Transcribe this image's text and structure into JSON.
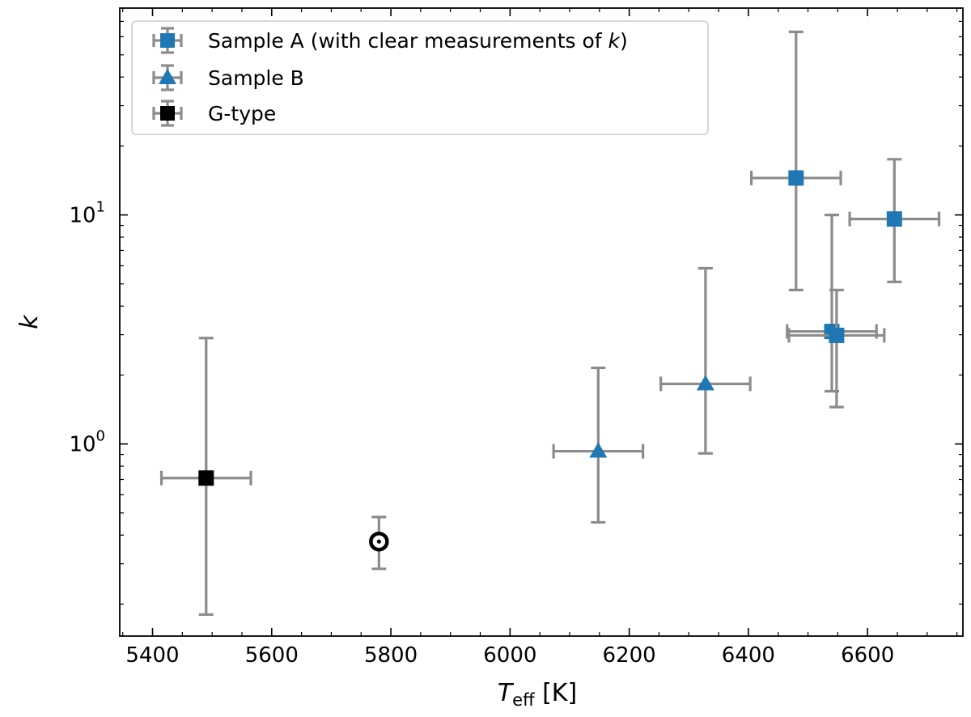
{
  "chart_data": {
    "type": "scatter",
    "xlabel": {
      "main": "T",
      "sub": "eff",
      "unit": " [K]"
    },
    "ylabel": "k",
    "xlim": [
      5345,
      6760
    ],
    "ylim": [
      0.145,
      80
    ],
    "yscale": "log",
    "x_ticks": [
      5400,
      5600,
      5800,
      6000,
      6200,
      6400,
      6600
    ],
    "y_ticks": [
      {
        "value": 1,
        "base": "10",
        "exp": "0"
      },
      {
        "value": 10,
        "base": "10",
        "exp": "1"
      }
    ],
    "legend_position": "top-left",
    "series": [
      {
        "name": "Sample A (with clear measurements of ",
        "name_italic": "k",
        "name_end": ")",
        "marker": "square",
        "color": "#1f77b4",
        "points": [
          {
            "x": 6480,
            "y": 14.5,
            "xerr": 75,
            "ylo": 4.7,
            "yhi": 63
          },
          {
            "x": 6645,
            "y": 9.6,
            "xerr": 75,
            "ylo": 5.1,
            "yhi": 17.5
          },
          {
            "x": 6540,
            "y": 3.1,
            "xerr": 75,
            "ylo": 1.7,
            "yhi": 10.0
          },
          {
            "x": 6548,
            "y": 2.98,
            "xerr": 80,
            "ylo": 1.45,
            "yhi": 4.7
          }
        ]
      },
      {
        "name": "Sample B",
        "marker": "triangle",
        "color": "#1f77b4",
        "points": [
          {
            "x": 6148,
            "y": 0.93,
            "xerr": 75,
            "ylo": 0.455,
            "yhi": 2.15
          },
          {
            "x": 6328,
            "y": 1.83,
            "xerr": 75,
            "ylo": 0.91,
            "yhi": 5.85
          }
        ]
      },
      {
        "name": "G-type",
        "marker": "square",
        "color": "#000000",
        "points": [
          {
            "x": 5490,
            "y": 0.71,
            "xerr": 75,
            "ylo": 0.18,
            "yhi": 2.9
          }
        ]
      },
      {
        "name": "",
        "marker": "sun",
        "color": "#000000",
        "points": [
          {
            "x": 5780,
            "y": 0.375,
            "xerr": 0,
            "ylo": 0.285,
            "yhi": 0.48
          }
        ]
      }
    ]
  }
}
